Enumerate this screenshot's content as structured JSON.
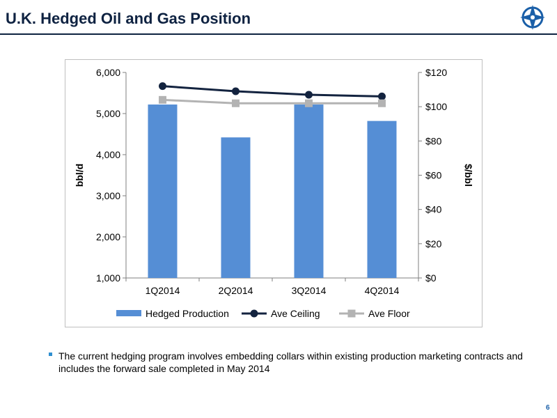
{
  "page": {
    "title": "U.K. Hedged Oil and Gas Position",
    "note": "The current hedging program involves embedding collars within existing production marketing contracts and includes the forward sale completed in May 2014",
    "page_number": "6"
  },
  "colors": {
    "title": "#0e2241",
    "bar": "#558ed5",
    "ceiling": "#13233f",
    "floor": "#b3b3b3",
    "bullet": "#2f8fd0"
  },
  "chart_data": {
    "type": "bar",
    "categories": [
      "1Q2014",
      "2Q2014",
      "3Q2014",
      "4Q2014"
    ],
    "ylabel": "bbl/d",
    "y2label": "$/bbl",
    "ylim": [
      1000,
      6000
    ],
    "y2lim": [
      0,
      120
    ],
    "yticks": [
      "1,000",
      "2,000",
      "3,000",
      "4,000",
      "5,000",
      "6,000"
    ],
    "y2ticks": [
      "$0",
      "$20",
      "$40",
      "$60",
      "$80",
      "$100",
      "$120"
    ],
    "series": [
      {
        "name": "Hedged Production",
        "type": "bar",
        "axis": "left",
        "values": [
          5220,
          4420,
          5220,
          4820
        ]
      },
      {
        "name": "Ave Ceiling",
        "type": "line",
        "axis": "right",
        "values": [
          112,
          109,
          107,
          106
        ]
      },
      {
        "name": "Ave Floor",
        "type": "line",
        "axis": "right",
        "values": [
          104,
          102,
          102,
          102
        ]
      }
    ],
    "legend_position": "bottom",
    "grid": false
  }
}
